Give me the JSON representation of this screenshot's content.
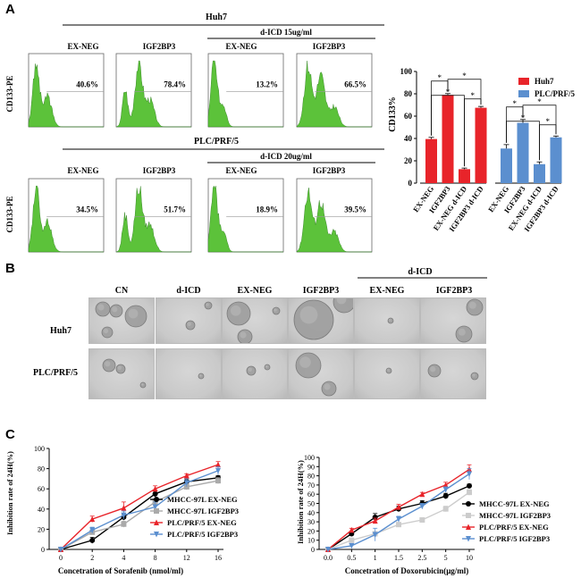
{
  "panels": {
    "a": "A",
    "b": "B",
    "c": "C"
  },
  "panel_a": {
    "huh7_title": "Huh7",
    "huh7_treat": "d-ICD 15ug/ml",
    "plc_title": "PLC/PRF/5",
    "plc_treat": "d-ICD 20ug/ml",
    "col_labels": [
      "EX-NEG",
      "IGF2BP3",
      "EX-NEG",
      "IGF2BP3"
    ],
    "y_label": "CD133-PE",
    "huh7_pct": [
      "40.6%",
      "78.4%",
      "13.2%",
      "66.5%"
    ],
    "plc_pct": [
      "34.5%",
      "51.7%",
      "18.9%",
      "39.5%"
    ]
  },
  "chart_data": [
    {
      "type": "bar",
      "ylabel": "CD133%",
      "ylim": [
        0,
        100
      ],
      "yticks": [
        0,
        20,
        40,
        60,
        80,
        100
      ],
      "categories": [
        "EX-NEG",
        "IGF2BP3",
        "EX-NEG d-ICD",
        "IGF2BP3 d-ICD"
      ],
      "series": [
        {
          "name": "Huh7",
          "color": "#e8242a",
          "values": [
            39.5,
            79,
            12.5,
            67.5
          ],
          "errors": [
            1.5,
            1.2,
            1.0,
            1.2
          ]
        },
        {
          "name": "PLC/PRF/5",
          "color": "#5b8fcf",
          "values": [
            31,
            54,
            17,
            41
          ],
          "errors": [
            3.5,
            3.0,
            2.0,
            1.2
          ]
        }
      ],
      "sig_marker": "*"
    },
    {
      "type": "line",
      "xlabel": "Concetration of Sorafenib (nmol/ml)",
      "ylabel": "Inhibition rate of 24H(%)",
      "x": [
        0,
        2,
        4,
        8,
        12,
        16
      ],
      "ylim": [
        0,
        100
      ],
      "yticks": [
        0,
        20,
        40,
        60,
        80,
        100
      ],
      "series": [
        {
          "name": "MHCC-97L EX-NEG",
          "color": "#000000",
          "marker": "circle",
          "values": [
            0,
            9,
            32,
            55,
            67,
            71
          ],
          "errors": [
            0,
            3,
            3,
            3,
            2,
            2
          ]
        },
        {
          "name": "MHCC-97L IGF2BP3",
          "color": "#aaaaaa",
          "marker": "square",
          "values": [
            0,
            17,
            25,
            47,
            62,
            68
          ],
          "errors": [
            0,
            2,
            3,
            3,
            3,
            3
          ]
        },
        {
          "name": "PLC/PRF/5 EX-NEG",
          "color": "#e8242a",
          "marker": "triangle",
          "values": [
            0,
            30,
            41,
            60,
            73,
            84
          ],
          "errors": [
            0,
            3,
            6,
            3,
            2,
            3
          ]
        },
        {
          "name": "PLC/PRF/5 IGF2BP3",
          "color": "#5b8fcf",
          "marker": "tri-down",
          "values": [
            0,
            19,
            34,
            42,
            66,
            78
          ],
          "errors": [
            0,
            3,
            4,
            5,
            4,
            4
          ]
        }
      ]
    },
    {
      "type": "line",
      "xlabel": "Concetration of  Doxorubicin(μg/ml)",
      "ylabel": "Inhibition rate of 24H(%)",
      "x": [
        "0.0",
        "0.5",
        "1",
        "1.5",
        "2.5",
        "5",
        "10"
      ],
      "ylim": [
        0,
        100
      ],
      "yticks": [
        0,
        10,
        20,
        30,
        40,
        50,
        60,
        70,
        80,
        90,
        100
      ],
      "series": [
        {
          "name": "MHCC-97L EX-NEG",
          "color": "#000000",
          "marker": "circle",
          "values": [
            0,
            17,
            35,
            44,
            50,
            58,
            69
          ],
          "errors": [
            0,
            2,
            4,
            3,
            3,
            3,
            2
          ]
        },
        {
          "name": "MHCC-97L IGF2BP3",
          "color": "#cccccc",
          "marker": "square",
          "values": [
            0,
            10,
            17,
            27,
            32,
            44,
            62
          ],
          "errors": [
            0,
            2,
            2,
            2,
            2,
            3,
            3
          ]
        },
        {
          "name": "PLC/PRF/5 EX-NEG",
          "color": "#e8242a",
          "marker": "triangle",
          "values": [
            0,
            21,
            31,
            46,
            60,
            70,
            87
          ],
          "errors": [
            0,
            2,
            3,
            3,
            2,
            3,
            5
          ]
        },
        {
          "name": "PLC/PRF/5 IGF2BP3",
          "color": "#5b8fcf",
          "marker": "tri-down",
          "values": [
            0,
            4,
            16,
            33,
            47,
            65,
            82
          ],
          "errors": [
            0,
            2,
            7,
            3,
            3,
            3,
            6
          ]
        }
      ]
    }
  ],
  "panel_b": {
    "col_labels": [
      "CN",
      "d-ICD",
      "EX-NEG",
      "IGF2BP3",
      "EX-NEG",
      "IGF2BP3"
    ],
    "group_label": "d-ICD",
    "row_labels": [
      "Huh7",
      "PLC/PRF/5"
    ]
  },
  "colors": {
    "histogram": "#5cc23a",
    "histogram_dark": "#2a7a1a",
    "photo_bg": "#c9c9c9"
  }
}
